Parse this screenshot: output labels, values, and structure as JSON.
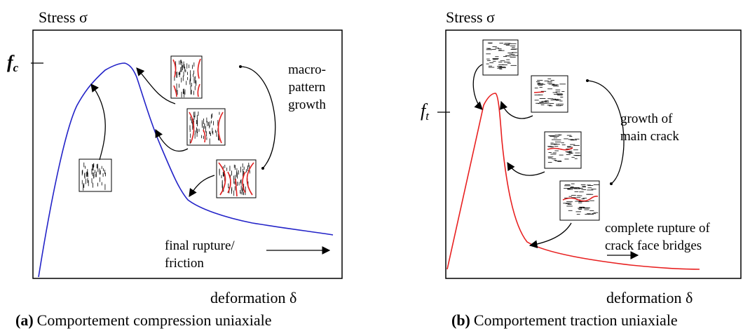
{
  "panels": [
    {
      "y_axis": "Stress σ",
      "x_axis": "deformation δ",
      "peak": {
        "base": "f",
        "sub": "c"
      },
      "annotations": {
        "pattern": [
          "macro-",
          "pattern",
          "growth"
        ],
        "rupture": [
          "final rupture/",
          "friction"
        ]
      },
      "caption": {
        "label": "(a)",
        "text": "Comportement compression uniaxiale"
      }
    },
    {
      "y_axis": "Stress σ",
      "x_axis": "deformation δ",
      "peak": {
        "base": "f",
        "sub": "t"
      },
      "annotations": {
        "crack": [
          "growth of",
          "main crack"
        ],
        "rupture": [
          "complete rupture of",
          "crack face bridges"
        ]
      },
      "caption": {
        "label": "(b)",
        "text": "Comportement traction uniaxiale"
      }
    }
  ]
}
